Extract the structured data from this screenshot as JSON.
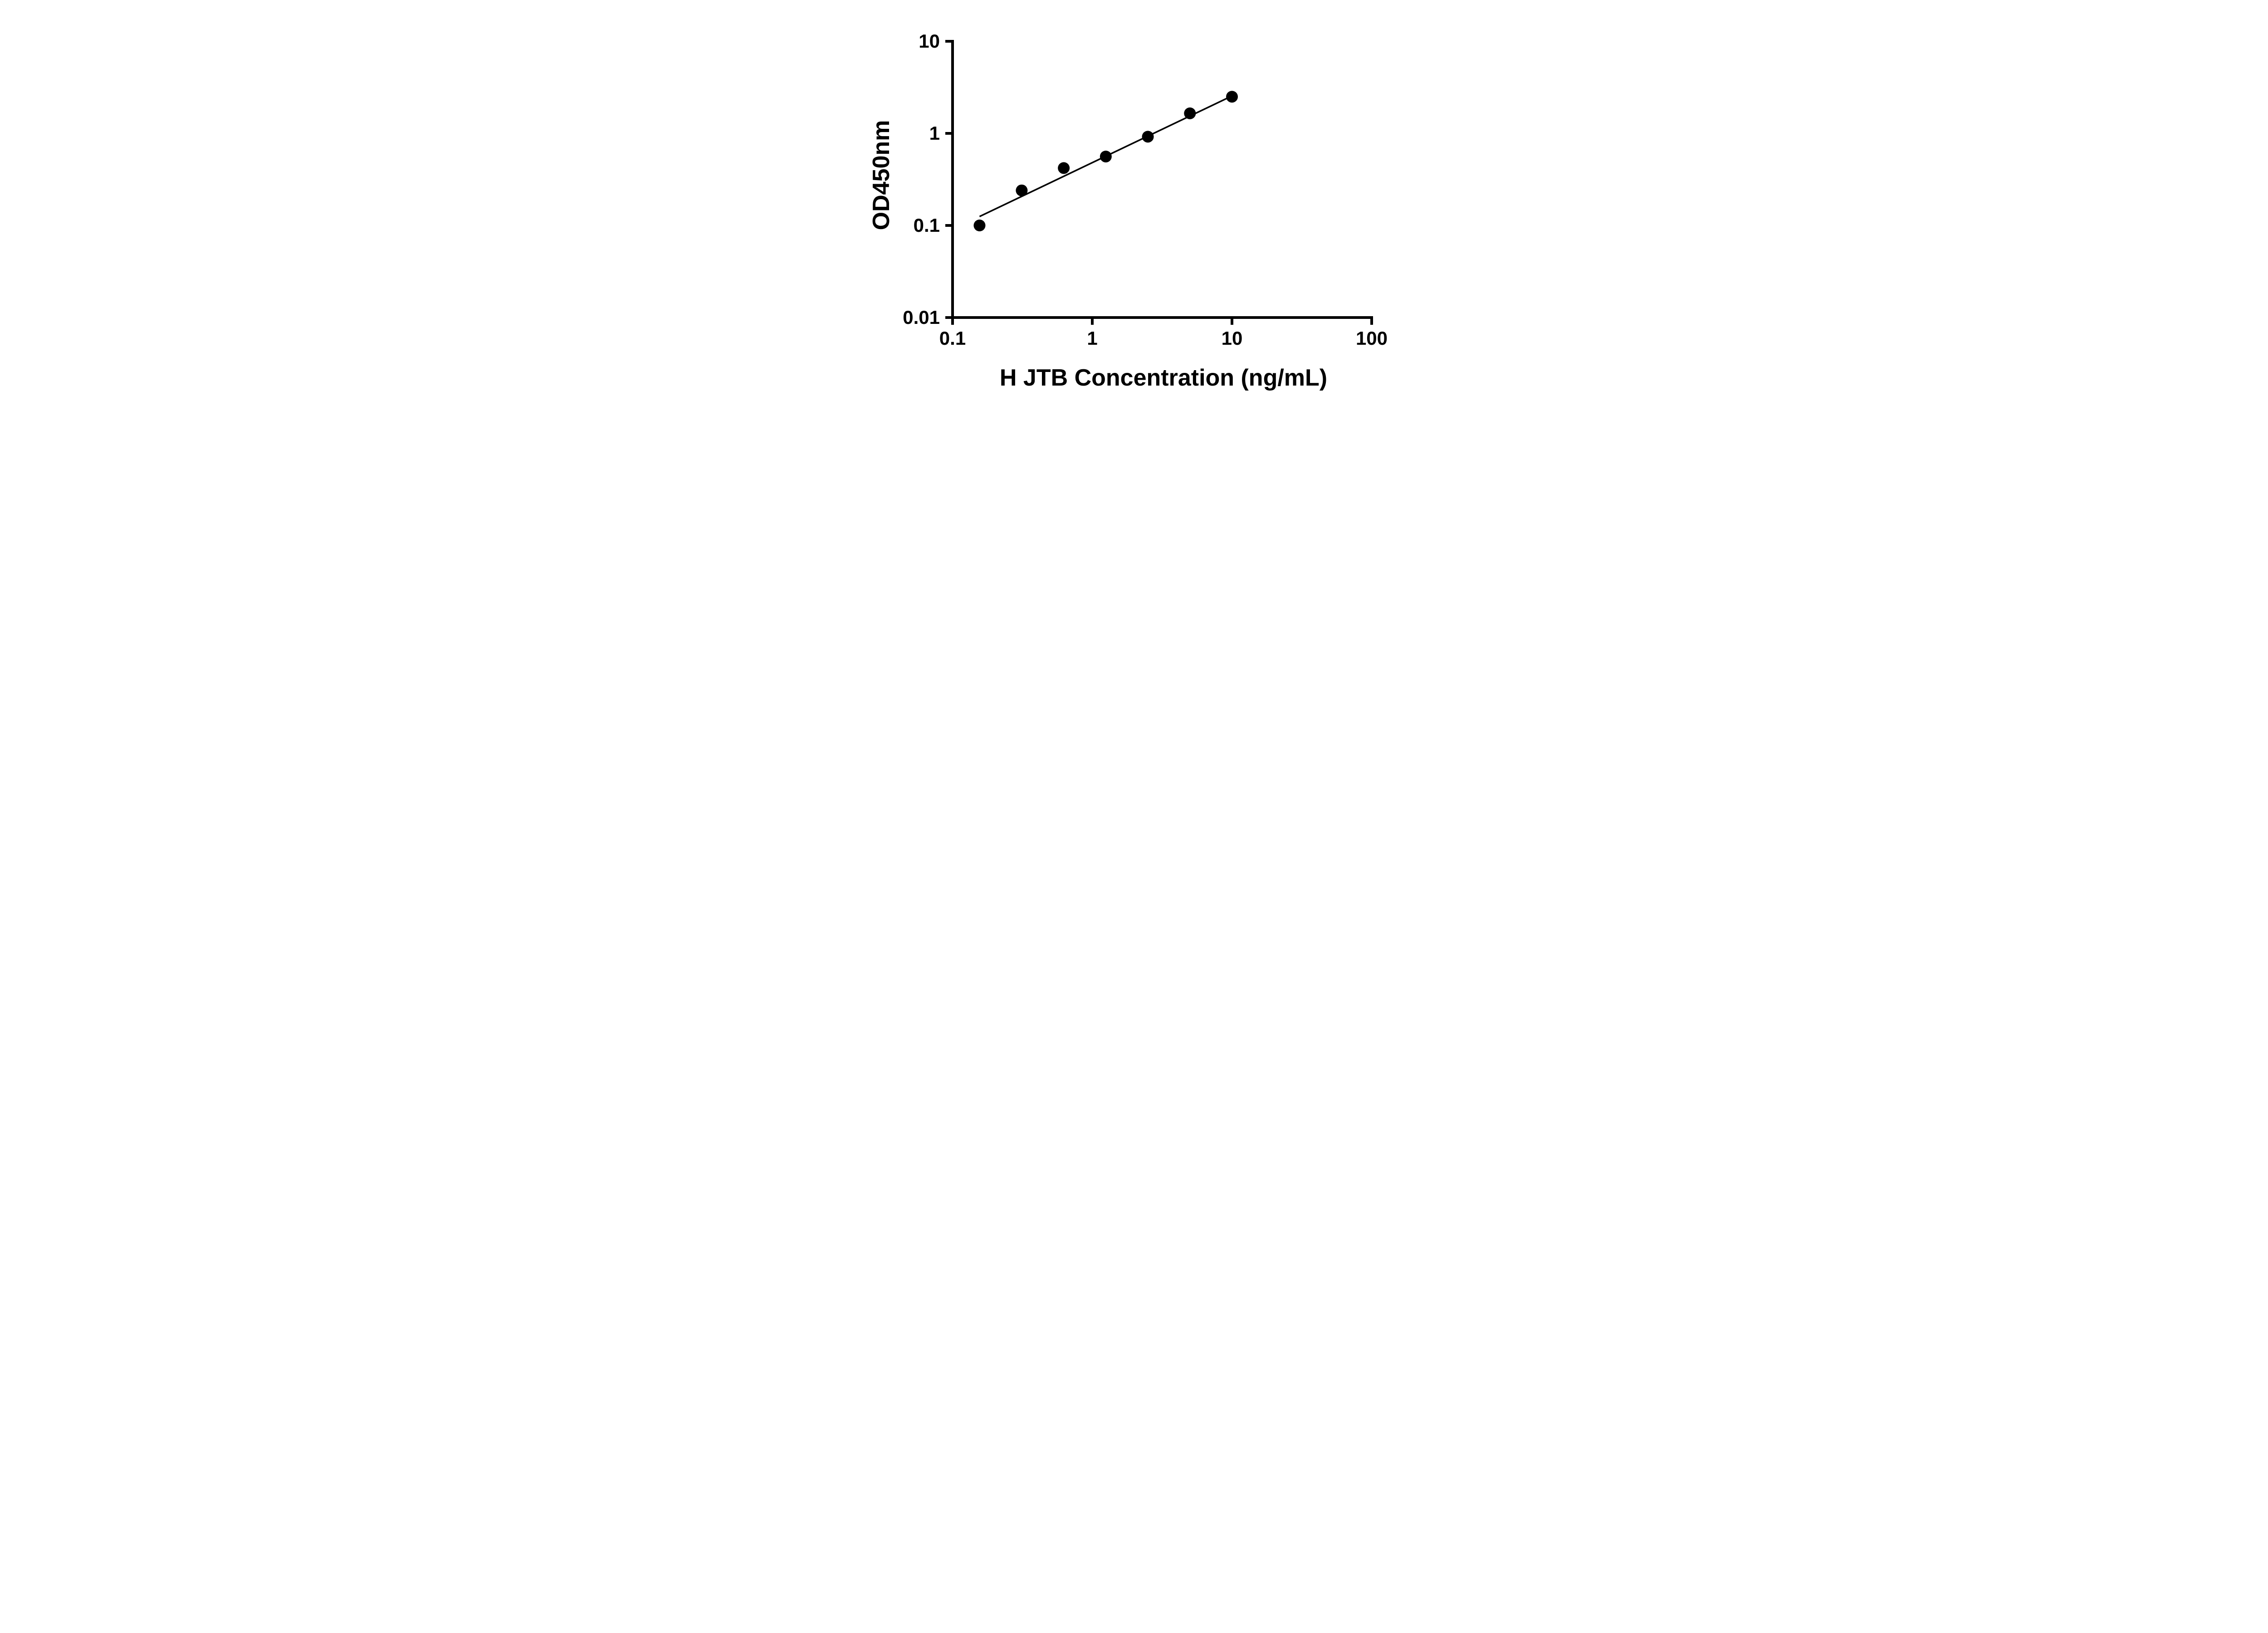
{
  "figure": {
    "background_color": "#ffffff",
    "foreground_color": "#000000"
  },
  "chart_data": {
    "type": "scatter",
    "title": "",
    "xlabel": "H JTB Concentration (ng/mL)",
    "ylabel": "OD450nm",
    "x_scale": "log10",
    "y_scale": "log10",
    "xlim": [
      0.1,
      100
    ],
    "ylim": [
      0.01,
      10
    ],
    "grid": false,
    "legend": null,
    "x_ticks": [
      {
        "value": 0.1,
        "label": "0.1"
      },
      {
        "value": 1,
        "label": "1"
      },
      {
        "value": 10,
        "label": "10"
      },
      {
        "value": 100,
        "label": "100"
      }
    ],
    "y_ticks": [
      {
        "value": 0.01,
        "label": "0.01"
      },
      {
        "value": 0.1,
        "label": "0.1"
      },
      {
        "value": 1,
        "label": "1"
      },
      {
        "value": 10,
        "label": "10"
      }
    ],
    "points": [
      {
        "x": 0.156,
        "y": 0.1
      },
      {
        "x": 0.3125,
        "y": 0.24
      },
      {
        "x": 0.625,
        "y": 0.42
      },
      {
        "x": 1.25,
        "y": 0.56
      },
      {
        "x": 2.5,
        "y": 0.92
      },
      {
        "x": 5,
        "y": 1.65
      },
      {
        "x": 10,
        "y": 2.5
      }
    ],
    "trend_line": {
      "x1": 0.156,
      "y1": 0.125,
      "x2": 10,
      "y2": 2.55
    },
    "marker": {
      "shape": "circle",
      "color": "#000000",
      "radius": 13
    },
    "line_color": "#000000",
    "axis_color": "#000000"
  }
}
